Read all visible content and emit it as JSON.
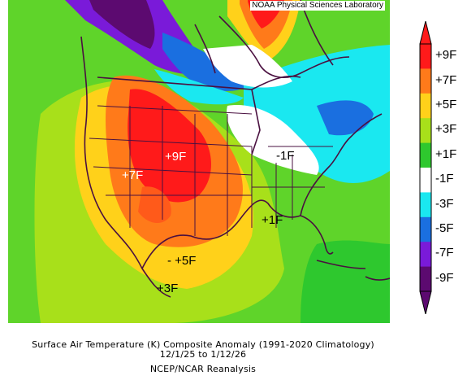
{
  "header": {
    "source": "NOAA Physical Sciences Laboratory"
  },
  "map": {
    "anomaly_labels": [
      "+9F",
      "+7F",
      "-1F",
      "+1F",
      "- +5F",
      "+3F"
    ]
  },
  "colorbar": {
    "labels": [
      "+9F",
      "+7F",
      "+5F",
      "+3F",
      "+1F",
      "-1F",
      "-3F",
      "-5F",
      "-7F",
      "-9F"
    ],
    "colors": [
      "#ff1a1a",
      "#ff7a1a",
      "#ffd11a",
      "#a8e01a",
      "#2ec82e",
      "#ffffff",
      "#1ae8f0",
      "#1a6fe0",
      "#7a1ad9",
      "#5c0a70"
    ]
  },
  "caption": {
    "line1": "Surface Air Temperature (K) Composite Anomaly (1991-2020 Climatology)",
    "line2": "12/1/25  to 1/12/26",
    "line3": "NCEP/NCAR Reanalysis"
  }
}
